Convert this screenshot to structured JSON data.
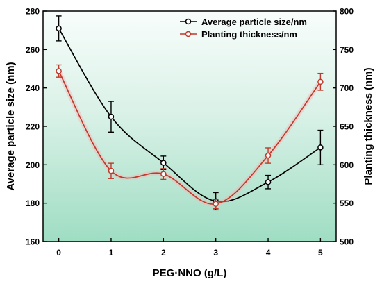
{
  "chart_data": {
    "type": "line",
    "title": "",
    "xlabel": "PEG·NNO (g/L)",
    "ylabel_left": "Average particle size (nm)",
    "ylabel_right": "Planting thickness (nm)",
    "x": [
      0,
      1,
      2,
      3,
      4,
      5
    ],
    "x_ticks": [
      "0",
      "1",
      "2",
      "3",
      "4",
      "5"
    ],
    "xlim": [
      -0.3,
      5.3
    ],
    "ylim_left": [
      160,
      280
    ],
    "y_ticks_left": [
      "160",
      "180",
      "200",
      "220",
      "240",
      "260",
      "280"
    ],
    "ylim_right": [
      500,
      800
    ],
    "y_ticks_right": [
      "500",
      "550",
      "600",
      "650",
      "700",
      "750",
      "800"
    ],
    "legend_position": "top-right",
    "grid": false,
    "series": [
      {
        "name": "Average particle size/nm",
        "axis": "left",
        "color": "#000000",
        "values": [
          271,
          225,
          201,
          181,
          191,
          209
        ],
        "errors": [
          6.5,
          8,
          3.5,
          4.5,
          3.5,
          9
        ]
      },
      {
        "name": "Planting thickness/nm",
        "axis": "right",
        "color": "#c0392b",
        "values": [
          722,
          592,
          588,
          549,
          612,
          708
        ],
        "errors": [
          8,
          10,
          7,
          6,
          10,
          11
        ]
      }
    ]
  }
}
